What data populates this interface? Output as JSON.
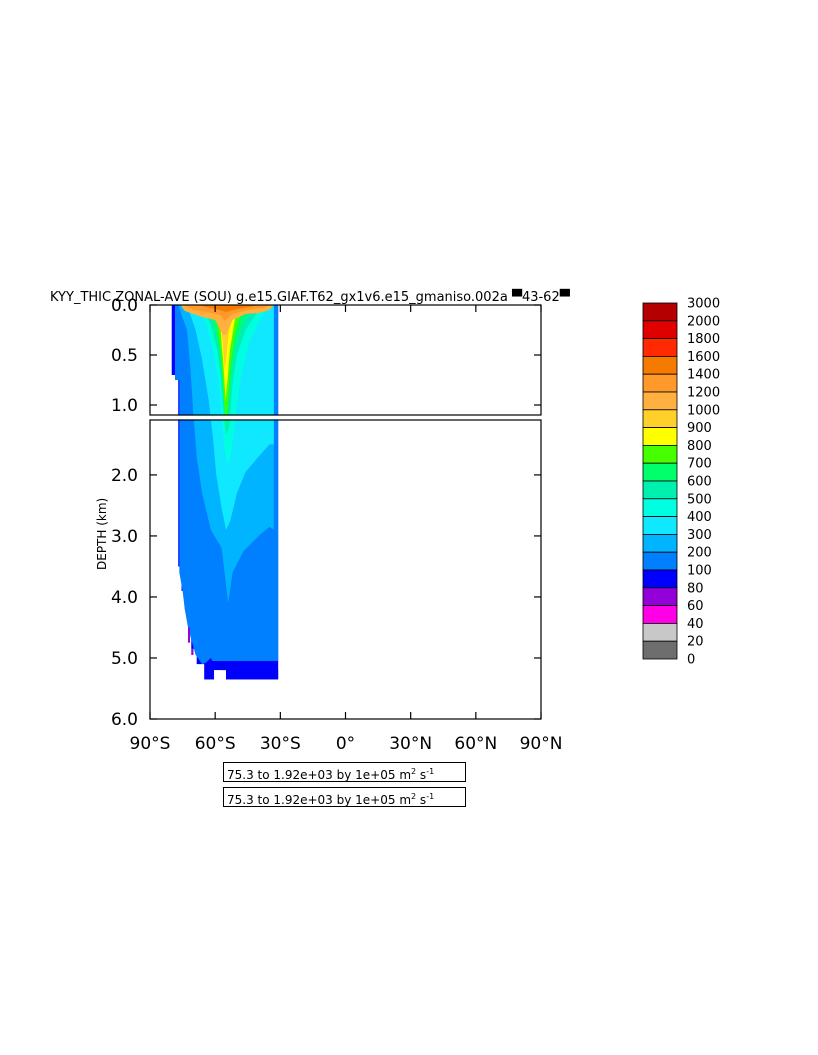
{
  "chart_data": {
    "type": "heatmap",
    "title": "KYY_THIC ZONAL-AVE (SOU) g.e15.GIAF.T62_gx1v6.e15_gmaniso.002a ▀43-62▀",
    "ylabel": "DEPTH (km)",
    "xlabel": "",
    "x_ticks": [
      "90°S",
      "60°S",
      "30°S",
      "0°",
      "30°N",
      "60°N",
      "90°N"
    ],
    "x_range": [
      -90,
      90
    ],
    "y_ticks_top": [
      "0.0",
      "0.5",
      "1.0"
    ],
    "y_ticks_bottom": [
      "2.0",
      "3.0",
      "4.0",
      "5.0",
      "6.0"
    ],
    "y_range": [
      0,
      6
    ],
    "y_break_km": 1.1,
    "colorbar": {
      "levels": [
        "3000",
        "2000",
        "1800",
        "1600",
        "1400",
        "1200",
        "1000",
        "900",
        "800",
        "700",
        "600",
        "500",
        "400",
        "300",
        "200",
        "100",
        "80",
        "60",
        "40",
        "20",
        "0"
      ],
      "colors": [
        "#b40000",
        "#e00000",
        "#ff2a00",
        "#f47a00",
        "#ff9a2a",
        "#ffb040",
        "#ffd02a",
        "#ffff00",
        "#48ff00",
        "#00ff6a",
        "#00f0b0",
        "#00ffe0",
        "#10e8ff",
        "#00b4ff",
        "#0080ff",
        "#0000ff",
        "#9400d8",
        "#ff00e6",
        "#c8c8c8",
        "#6e6e6e"
      ]
    },
    "contour_info": [
      "75.3 to 1.92e+03 by 1e+05 m",
      "75.3 to 1.92e+03 by 1e+05 m"
    ],
    "units_sup": [
      "2",
      "-1"
    ],
    "units_tail": " s",
    "field": {
      "lat_range": [
        -77,
        -31
      ],
      "bottom_depth_km": [
        [
          -77,
          3.5
        ],
        [
          -75.5,
          3.9
        ],
        [
          -74,
          4.2
        ],
        [
          -72.5,
          4.5
        ],
        [
          -71,
          4.85
        ],
        [
          -68.5,
          5.1
        ],
        [
          -65,
          5.35
        ],
        [
          -60.5,
          5.2
        ],
        [
          -57.5,
          5.2
        ],
        [
          -55,
          5.35
        ],
        [
          -31,
          5.35
        ]
      ],
      "bands": [
        {
          "level": "100",
          "lat_left": [
            -77,
            -77,
            -77
          ],
          "profile": "full"
        },
        {
          "level": "200",
          "note": "main interior"
        },
        {
          "level": "300",
          "note": "upper cell 0-3 km"
        },
        {
          "level": "400",
          "note": "core above 1.5 km"
        },
        {
          "level": "1000+",
          "note": "surface maximum near 55°S"
        }
      ]
    }
  }
}
